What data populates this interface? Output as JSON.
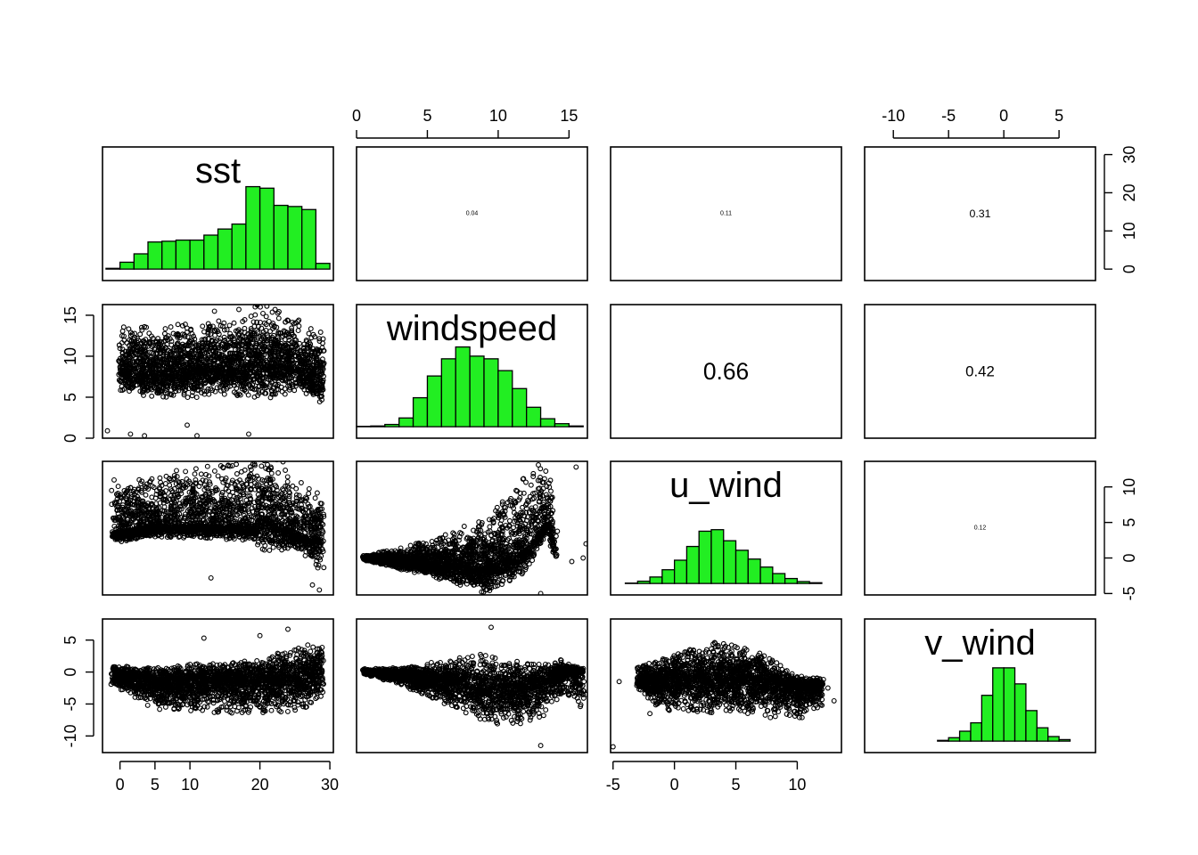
{
  "chart_data": {
    "type": "scatter",
    "variables": [
      "sst",
      "windspeed",
      "u_wind",
      "v_wind"
    ],
    "colors": {
      "histogram_fill": "#22ee22",
      "points": "#000000"
    },
    "axes": {
      "sst": {
        "range": [
          -2.5,
          30.5
        ],
        "ticks": [
          "0",
          "5",
          "10",
          "20",
          "30"
        ],
        "tick_values": [
          0,
          5,
          10,
          20,
          30
        ]
      },
      "windspeed": {
        "range": [
          0,
          16.3
        ],
        "ticks": [
          "0",
          "5",
          "10",
          "15"
        ],
        "tick_values": [
          0,
          5,
          10,
          15
        ]
      },
      "u_wind": {
        "range": [
          -5.2,
          13.6
        ],
        "ticks": [
          "-5",
          "0",
          "5",
          "10"
        ],
        "tick_values": [
          -5,
          0,
          5,
          10
        ]
      },
      "v_wind": {
        "range": [
          -12.6,
          8.3
        ],
        "ticks": [
          "-10",
          "-5",
          "0",
          "5"
        ],
        "tick_values": [
          -10,
          -5,
          0,
          5
        ]
      },
      "histogram_count": {
        "range": [
          -3,
          32
        ],
        "ticks": [
          "0",
          "10",
          "20",
          "30"
        ],
        "tick_values": [
          0,
          10,
          20,
          30
        ]
      }
    },
    "histograms": {
      "sst": {
        "breaks": [
          -2,
          0,
          2,
          4,
          6,
          8,
          10,
          12,
          14,
          16,
          18,
          20,
          22,
          24,
          26,
          28,
          30
        ],
        "heights": [
          0.2,
          1.8,
          4.0,
          7.1,
          7.3,
          7.6,
          7.6,
          8.9,
          10.5,
          11.8,
          21.6,
          21.2,
          16.7,
          16.4,
          15.6,
          1.5
        ]
      },
      "windspeed": {
        "breaks": [
          0,
          1,
          2,
          3,
          4,
          5,
          6,
          7,
          8,
          9,
          10,
          11,
          12,
          13,
          14,
          15,
          16
        ],
        "heights": [
          0.1,
          0.2,
          0.6,
          2.3,
          7.6,
          13.3,
          17.8,
          20.9,
          18.5,
          17.8,
          14.7,
          10.0,
          5.1,
          2.1,
          0.8,
          0.2
        ]
      },
      "u_wind": {
        "breaks": [
          -4,
          -3,
          -2,
          -1,
          0,
          1,
          2,
          3,
          4,
          5,
          6,
          7,
          8,
          9,
          10,
          11,
          12
        ],
        "heights": [
          0.1,
          0.6,
          1.7,
          3.6,
          6.1,
          9.7,
          13.7,
          14.1,
          11.2,
          8.7,
          6.4,
          4.3,
          2.6,
          1.3,
          0.5,
          0.2
        ]
      },
      "v_wind": {
        "breaks": [
          -6,
          -5,
          -4,
          -3,
          -2,
          -1,
          0,
          1,
          2,
          3,
          4,
          5,
          6
        ],
        "heights": [
          0.2,
          0.9,
          2.6,
          4.8,
          12.0,
          19.2,
          19.2,
          15.0,
          8.0,
          3.5,
          1.2,
          0.4
        ]
      }
    },
    "correlations": [
      {
        "pair": [
          "sst",
          "windspeed"
        ],
        "value": 0.04,
        "label": "0.04"
      },
      {
        "pair": [
          "sst",
          "u_wind"
        ],
        "value": 0.11,
        "label": "0.11"
      },
      {
        "pair": [
          "sst",
          "v_wind"
        ],
        "value": 0.31,
        "label": "0.31"
      },
      {
        "pair": [
          "windspeed",
          "u_wind"
        ],
        "value": 0.66,
        "label": "0.66"
      },
      {
        "pair": [
          "windspeed",
          "v_wind"
        ],
        "value": 0.42,
        "label": "0.42"
      },
      {
        "pair": [
          "u_wind",
          "v_wind"
        ],
        "value": 0.12,
        "label": "0.12"
      }
    ],
    "scatter": [
      {
        "x": "sst",
        "y": "windspeed",
        "core": [
          [
            0,
            8.4,
            5.5,
            2.5
          ],
          [
            5,
            8.0,
            5.6,
            3.1
          ],
          [
            10,
            8.3,
            5.8,
            3.4
          ],
          [
            15,
            8.5,
            6.0,
            3.3
          ],
          [
            20,
            9.2,
            7.4,
            4.6
          ],
          [
            25,
            8.8,
            6.0,
            3.3
          ],
          [
            29,
            7.6,
            5.7,
            3.4
          ]
        ],
        "outliers": [
          [
            -1.8,
            0.9
          ],
          [
            1.5,
            0.5
          ],
          [
            3.5,
            0.3
          ],
          [
            9.6,
            1.6
          ],
          [
            11,
            0.3
          ],
          [
            18.4,
            0.5
          ],
          [
            17,
            15.7
          ],
          [
            21,
            16.1
          ],
          [
            13.5,
            15.5
          ],
          [
            3.5,
            13.6
          ]
        ]
      },
      {
        "x": "sst",
        "y": "u_wind",
        "core": [
          [
            -1,
            3.5,
            7.5,
            1.5
          ],
          [
            5,
            4.5,
            7.7,
            1.5
          ],
          [
            10,
            4.5,
            8.4,
            1.7
          ],
          [
            15,
            4.5,
            8.6,
            1.9
          ],
          [
            19,
            4.5,
            11.0,
            2.0
          ],
          [
            20.5,
            6.0,
            12.8,
            5.0
          ],
          [
            25,
            3.5,
            7.7,
            2.5
          ],
          [
            29,
            2.5,
            6.0,
            4.6
          ]
        ],
        "outliers": [
          [
            -1.2,
            9.5
          ],
          [
            1.5,
            9.9
          ],
          [
            13,
            -2.8
          ],
          [
            27.5,
            -3.8
          ],
          [
            28.5,
            -4.5
          ]
        ]
      },
      {
        "x": "sst",
        "y": "v_wind",
        "core": [
          [
            -1,
            -0.5,
            1.5,
            1.5
          ],
          [
            5,
            -1.5,
            2.2,
            4.4
          ],
          [
            10,
            -1.5,
            2.8,
            5.0
          ],
          [
            15,
            -1.5,
            2.8,
            5.0
          ],
          [
            20,
            -1.5,
            3.5,
            5.0
          ],
          [
            25,
            -1.0,
            5.2,
            5.2
          ],
          [
            29,
            -0.5,
            5.0,
            4.0
          ]
        ],
        "outliers": [
          [
            12,
            5.3
          ],
          [
            20,
            5.7
          ],
          [
            24,
            6.7
          ],
          [
            14.5,
            -5.5
          ]
        ]
      },
      {
        "x": "windspeed",
        "y": "u_wind",
        "core": [
          [
            0.5,
            0.0,
            0.5,
            0.3
          ],
          [
            3,
            -0.5,
            1.8,
            1.0
          ],
          [
            6,
            -1.0,
            4.2,
            2.0
          ],
          [
            9,
            -1.5,
            7.2,
            3.5
          ],
          [
            12,
            1.0,
            11.5,
            3.0
          ],
          [
            13.5,
            5.0,
            12.0,
            1.0
          ],
          [
            14,
            0.8,
            3.0,
            1.0
          ]
        ],
        "outliers": [
          [
            13,
            -5.0
          ],
          [
            15.5,
            12.8
          ],
          [
            16,
            0.0
          ],
          [
            15.2,
            -0.5
          ],
          [
            16.2,
            2.0
          ],
          [
            9.8,
            -4.0
          ]
        ]
      },
      {
        "x": "windspeed",
        "y": "v_wind",
        "core": [
          [
            0.5,
            0.0,
            0.5,
            0.3
          ],
          [
            3,
            -0.5,
            1.2,
            1.5
          ],
          [
            6,
            -1.5,
            3.2,
            3.2
          ],
          [
            9,
            -2.5,
            5.5,
            5.5
          ],
          [
            11,
            -3.0,
            5.0,
            5.8
          ],
          [
            13,
            -2.0,
            3.2,
            5.2
          ],
          [
            14.5,
            0.0,
            2.0,
            3.5
          ],
          [
            16,
            0.0,
            0.5,
            6.0
          ]
        ],
        "outliers": [
          [
            9.5,
            7.0
          ],
          [
            13,
            -11.5
          ],
          [
            15.8,
            -5.4
          ],
          [
            16.2,
            -3.5
          ]
        ]
      },
      {
        "x": "u_wind",
        "y": "v_wind",
        "core": [
          [
            -3,
            -1.5,
            2.5,
            1.3
          ],
          [
            -1,
            -1.5,
            3.5,
            4.5
          ],
          [
            1,
            -1.0,
            4.5,
            5.2
          ],
          [
            4,
            -1.0,
            6.0,
            5.5
          ],
          [
            7,
            -1.5,
            4.5,
            5.5
          ],
          [
            10,
            -2.5,
            2.0,
            5.0
          ],
          [
            12,
            -2.0,
            1.0,
            4.0
          ]
        ],
        "outliers": [
          [
            -4.5,
            -1.5
          ],
          [
            -5,
            -11.7
          ],
          [
            13,
            -4.5
          ],
          [
            12.5,
            -2.5
          ],
          [
            -2,
            -6.5
          ]
        ]
      }
    ]
  }
}
